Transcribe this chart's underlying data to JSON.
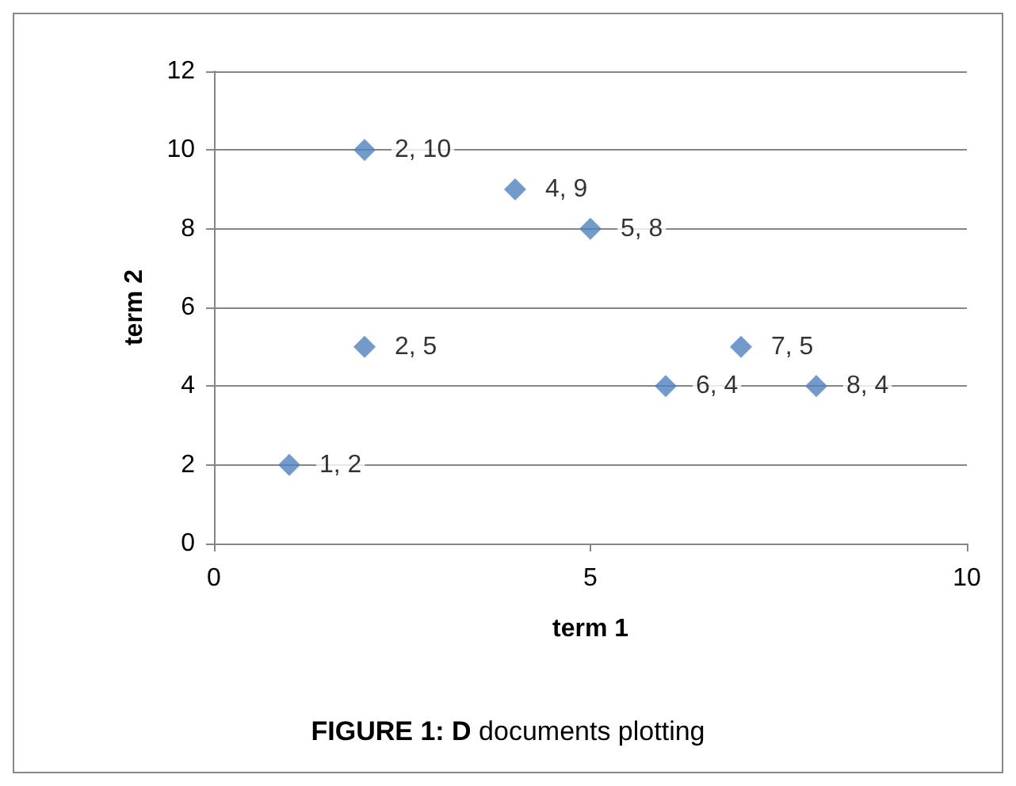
{
  "chart_data": {
    "type": "scatter",
    "title": "FIGURE 1: D documents plotting",
    "xlabel": "term 1",
    "ylabel": "term 2",
    "x": [
      1,
      2,
      2,
      4,
      5,
      6,
      7,
      8
    ],
    "values": [
      2,
      5,
      10,
      9,
      8,
      4,
      5,
      4
    ],
    "value_labels": [
      "1, 2",
      "2, 5",
      "2, 10",
      "4, 9",
      "5, 8",
      "6, 4",
      "7, 5",
      "8, 4"
    ],
    "color": "#4f81bd",
    "marker": "diamond",
    "xlim": [
      0,
      10
    ],
    "xticks": [
      0,
      5,
      10
    ],
    "ylim": [
      0,
      12
    ],
    "yticks": [
      0,
      2,
      4,
      6,
      8,
      10,
      12
    ],
    "grid": "y"
  }
}
